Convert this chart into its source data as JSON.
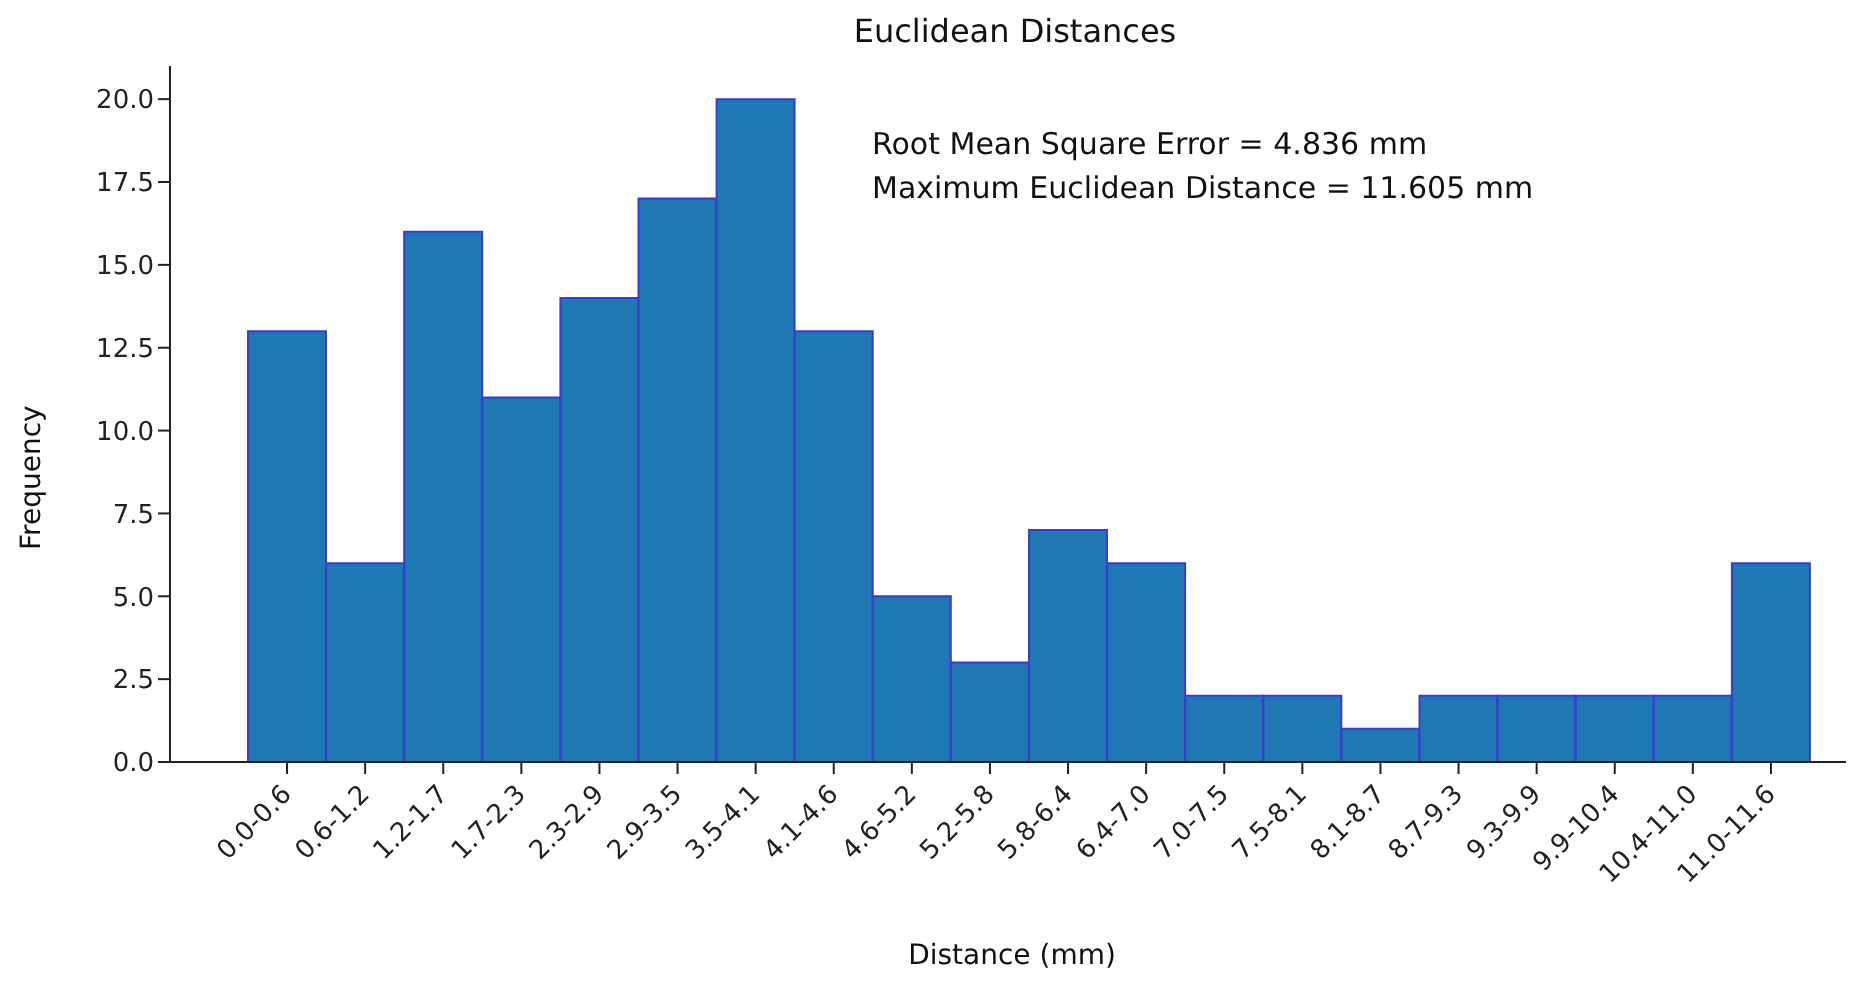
{
  "chart_data": {
    "type": "bar",
    "title": "Euclidean Distances",
    "xlabel": "Distance (mm)",
    "ylabel": "Frequency",
    "categories": [
      "0.0-0.6",
      "0.6-1.2",
      "1.2-1.7",
      "1.7-2.3",
      "2.3-2.9",
      "2.9-3.5",
      "3.5-4.1",
      "4.1-4.6",
      "4.6-5.2",
      "5.2-5.8",
      "5.8-6.4",
      "6.4-7.0",
      "7.0-7.5",
      "7.5-8.1",
      "8.1-8.7",
      "8.7-9.3",
      "9.3-9.9",
      "9.9-10.4",
      "10.4-11.0",
      "11.0-11.6"
    ],
    "values": [
      13,
      6,
      16,
      11,
      14,
      17,
      20,
      13,
      5,
      3,
      7,
      6,
      2,
      2,
      1,
      2,
      2,
      2,
      2,
      6
    ],
    "color": "#1f77b4",
    "ylim": [
      0,
      21
    ],
    "yticks": [
      {
        "value": 0,
        "label": "0.0"
      },
      {
        "value": 2.5,
        "label": "2.5"
      },
      {
        "value": 5,
        "label": "5.0"
      },
      {
        "value": 7.5,
        "label": "7.5"
      },
      {
        "value": 10,
        "label": "10.0"
      },
      {
        "value": 12.5,
        "label": "12.5"
      },
      {
        "value": 15,
        "label": "15.0"
      },
      {
        "value": 17.5,
        "label": "17.5"
      },
      {
        "value": 20,
        "label": "20.0"
      }
    ],
    "annotations": [
      "Root Mean Square Error = 4.836 mm",
      "Maximum Euclidean Distance = 11.605 mm"
    ],
    "grid": false,
    "legend": false
  }
}
